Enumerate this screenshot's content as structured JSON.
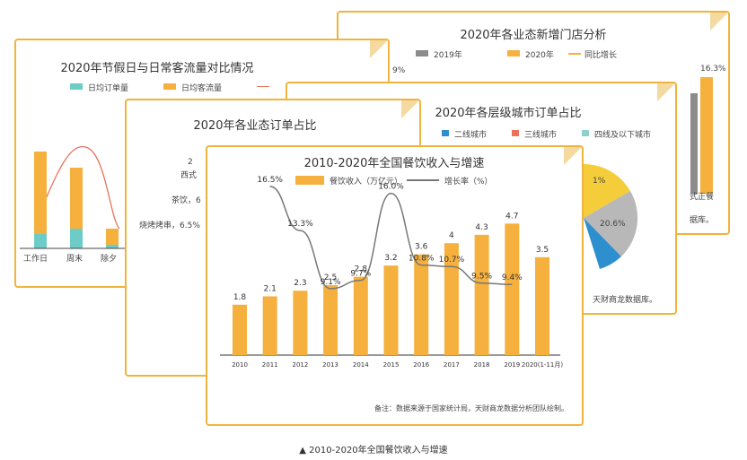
{
  "card_stores": {
    "title": "2020年各业态新增门店分析",
    "legend": [
      "2019年",
      "2020年",
      "同比增长"
    ],
    "colors": [
      "#8c8c8c",
      "#f5b03d",
      "#f5b03d"
    ],
    "label_pct": "16.3%",
    "label_top_left": "9%",
    "xlabel": "式正餐",
    "source": "据库。"
  },
  "card_holiday": {
    "title": "2020年节假日与日常客流量对比情况",
    "legend": [
      "日均订单量",
      "日均客流量"
    ],
    "colors": [
      "#6dcbc8",
      "#f5b03d",
      "#e8735a"
    ],
    "categories": [
      "工作日",
      "周末",
      "除夕"
    ]
  },
  "card_city": {
    "title": "2020年各层级城市订单占比",
    "legend": [
      "二线城市",
      "三线城市",
      "四线及以下城市"
    ],
    "colors": [
      "#2e8fce",
      "#e8735a",
      "#8fd0cd"
    ],
    "pie_labels": [
      "1%",
      "20.6%"
    ],
    "source": "天财商龙数据库。"
  },
  "card_orders": {
    "title": "2020年各业态订单占比",
    "labels": [
      "西式",
      "茶饮，6",
      "烧烤烤串，6.5%"
    ],
    "mark": "2"
  },
  "main": {
    "title": "2010-2020年全国餐饮收入与增速",
    "legend_bar": "餐饮收入（万亿元）",
    "legend_line": "增长率（%）",
    "note": "备注：数据来源于国家统计局，天财商龙数据分析团队绘制。"
  },
  "chart_data": {
    "type": "bar",
    "title": "2010-2020年全国餐饮收入与增速",
    "categories": [
      "2010",
      "2011",
      "2012",
      "2013",
      "2014",
      "2015",
      "2016",
      "2017",
      "2018",
      "2019",
      "2020(1-11月)"
    ],
    "series": [
      {
        "name": "餐饮收入（万亿元）",
        "type": "bar",
        "color": "#f5b03d",
        "values": [
          1.8,
          2.1,
          2.3,
          2.5,
          2.8,
          3.2,
          3.6,
          4.0,
          4.3,
          4.7,
          3.5
        ]
      },
      {
        "name": "增长率（%）",
        "type": "line",
        "color": "#777777",
        "values": [
          null,
          16.5,
          13.3,
          9.1,
          9.7,
          16.0,
          10.8,
          10.7,
          9.5,
          9.4,
          null
        ]
      }
    ]
  },
  "caption": "▲ 2010-2020年全国餐饮收入与增速"
}
